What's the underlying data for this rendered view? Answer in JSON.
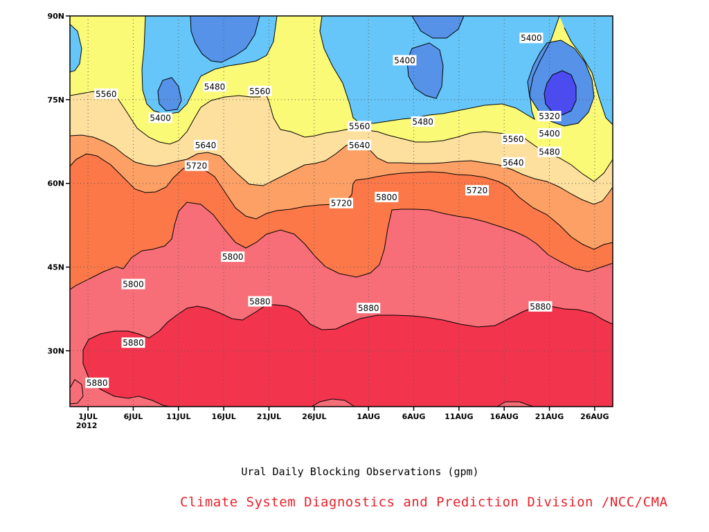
{
  "caption": "Ural Daily Blocking Observations (gpm)",
  "credit": "Climate System Diagnostics and Prediction Division /NCC/CMA",
  "chart_data": {
    "type": "contour",
    "title": "",
    "xlabel": "",
    "ylabel": "",
    "x_range": [
      "2012-06-29",
      "2012-08-28"
    ],
    "y_range_deg_north": [
      20,
      90
    ],
    "x_ticks": [
      {
        "label": "1JUL",
        "sublabel": "2012",
        "date": "2012-07-01"
      },
      {
        "label": "6JUL",
        "date": "2012-07-06"
      },
      {
        "label": "11JUL",
        "date": "2012-07-11"
      },
      {
        "label": "16JUL",
        "date": "2012-07-16"
      },
      {
        "label": "21JUL",
        "date": "2012-07-21"
      },
      {
        "label": "26JUL",
        "date": "2012-07-26"
      },
      {
        "label": "1AUG",
        "date": "2012-08-01"
      },
      {
        "label": "6AUG",
        "date": "2012-08-06"
      },
      {
        "label": "11AUG",
        "date": "2012-08-11"
      },
      {
        "label": "16AUG",
        "date": "2012-08-16"
      },
      {
        "label": "21AUG",
        "date": "2012-08-21"
      },
      {
        "label": "26AUG",
        "date": "2012-08-26"
      }
    ],
    "y_ticks": [
      {
        "label": "30N",
        "value": 30
      },
      {
        "label": "45N",
        "value": 45
      },
      {
        "label": "60N",
        "value": 60
      },
      {
        "label": "75N",
        "value": 75
      },
      {
        "label": "90N",
        "value": 90
      }
    ],
    "grid": true,
    "contour_levels": [
      5320,
      5400,
      5480,
      5560,
      5640,
      5720,
      5800,
      5880
    ],
    "fill_colors": {
      "below_5320": "#4b4bf0",
      "5320_5400": "#5592e8",
      "5400_5480": "#66c6fa",
      "5480_5560": "#fafa76",
      "5560_5640": "#fde09e",
      "5640_5720": "#fca066",
      "5720_5800": "#fc7848",
      "5800_5880": "#f86e78",
      "above_5880": "#f2354d"
    },
    "contour_labels": [
      {
        "text": "5400",
        "date": "2012-08-19",
        "lat": 86
      },
      {
        "text": "5400",
        "date": "2012-08-05",
        "lat": 82
      },
      {
        "text": "5560",
        "date": "2012-07-03",
        "lat": 76
      },
      {
        "text": "5480",
        "date": "2012-07-15",
        "lat": 77.3
      },
      {
        "text": "5560",
        "date": "2012-07-20",
        "lat": 76.5
      },
      {
        "text": "5400",
        "date": "2012-07-09",
        "lat": 71.7
      },
      {
        "text": "5480",
        "date": "2012-08-07",
        "lat": 71
      },
      {
        "text": "5320",
        "date": "2012-08-21",
        "lat": 72
      },
      {
        "text": "5560",
        "date": "2012-07-31",
        "lat": 70.2
      },
      {
        "text": "5400",
        "date": "2012-08-21",
        "lat": 68.9
      },
      {
        "text": "5560",
        "date": "2012-08-17",
        "lat": 67.9
      },
      {
        "text": "5640",
        "date": "2012-07-14",
        "lat": 66.8
      },
      {
        "text": "5640",
        "date": "2012-07-31",
        "lat": 66.8
      },
      {
        "text": "5480",
        "date": "2012-08-21",
        "lat": 65.6
      },
      {
        "text": "5640",
        "date": "2012-08-17",
        "lat": 63.7
      },
      {
        "text": "5720",
        "date": "2012-07-13",
        "lat": 63.1
      },
      {
        "text": "5720",
        "date": "2012-08-13",
        "lat": 58.7
      },
      {
        "text": "5800",
        "date": "2012-08-03",
        "lat": 57.5
      },
      {
        "text": "5720",
        "date": "2012-07-29",
        "lat": 56.4
      },
      {
        "text": "5800",
        "date": "2012-07-17",
        "lat": 46.8
      },
      {
        "text": "5800",
        "date": "2012-07-06",
        "lat": 41.9
      },
      {
        "text": "5880",
        "date": "2012-07-20",
        "lat": 38.8
      },
      {
        "text": "5880",
        "date": "2012-08-01",
        "lat": 37.6
      },
      {
        "text": "5880",
        "date": "2012-08-20",
        "lat": 37.9
      },
      {
        "text": "5880",
        "date": "2012-07-06",
        "lat": 31.4
      },
      {
        "text": "5880",
        "date": "2012-07-02",
        "lat": 24.2
      }
    ]
  }
}
